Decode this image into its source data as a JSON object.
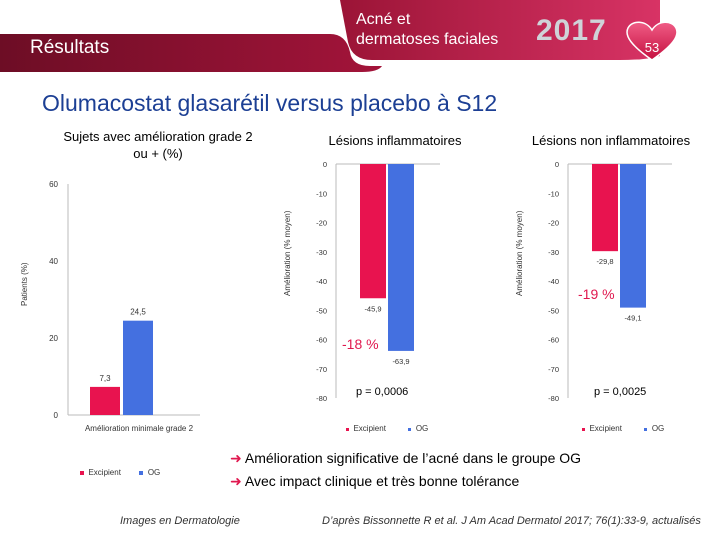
{
  "header": {
    "section": "Résultats",
    "congress_line1": "Acné et",
    "congress_line2": "dermatoses faciales",
    "year": "2017",
    "page_number": "53"
  },
  "title": "Olumacostat glasarétil versus placebo à S12",
  "colors": {
    "excipient": "#e8134f",
    "og": "#4470e0",
    "title": "#1c3f94",
    "banner": "#8a1230",
    "accent": "#e0184f"
  },
  "chart_data": [
    {
      "type": "bar",
      "title": "Sujets avec amélioration grade 2 ou + (%)",
      "ylabel": "Patients (%)",
      "xlabel": "Amélioration minimale grade 2",
      "ylim": [
        0,
        60
      ],
      "yticks": [
        "0",
        "20",
        "40",
        "60"
      ],
      "series": [
        {
          "name": "Excipient",
          "values": [
            7.3
          ],
          "label": "7,3"
        },
        {
          "name": "OG",
          "values": [
            24.5
          ],
          "label": "24,5"
        }
      ]
    },
    {
      "type": "bar",
      "title": "Lésions inflammatoires",
      "ylabel": "Amélioration (% moyen)",
      "ylim": [
        -80,
        0
      ],
      "yticks": [
        "0",
        "-10",
        "-20",
        "-30",
        "-40",
        "-50",
        "-60",
        "-70",
        "-80"
      ],
      "series": [
        {
          "name": "Excipient",
          "values": [
            -45.9
          ],
          "label": "-45,9"
        },
        {
          "name": "OG",
          "values": [
            -63.9
          ],
          "label": "-63,9"
        }
      ],
      "annotations": {
        "difference": "-18 %",
        "p_value": "p = 0,0006"
      }
    },
    {
      "type": "bar",
      "title": "Lésions non inflammatoires",
      "ylabel": "Amélioration (% moyen)",
      "ylim": [
        -80,
        0
      ],
      "yticks": [
        "0",
        "-10",
        "-20",
        "-30",
        "-40",
        "-50",
        "-60",
        "-70",
        "-80"
      ],
      "series": [
        {
          "name": "Excipient",
          "values": [
            -29.8
          ],
          "label": "-29,8"
        },
        {
          "name": "OG",
          "values": [
            -49.1
          ],
          "label": "-49,1"
        }
      ],
      "annotations": {
        "difference": "-19 %",
        "p_value": "p = 0,0025"
      }
    }
  ],
  "legend": {
    "excipient": "Excipient",
    "og": "OG"
  },
  "conclusions": [
    "Amélioration significative de l’acné dans le groupe OG",
    "Avec impact clinique et très bonne tolérance"
  ],
  "footer": {
    "left": "Images en Dermatologie",
    "right": "D’après Bissonnette R et al. J Am Acad Dermatol 2017; 76(1):33-9, actualisés"
  }
}
